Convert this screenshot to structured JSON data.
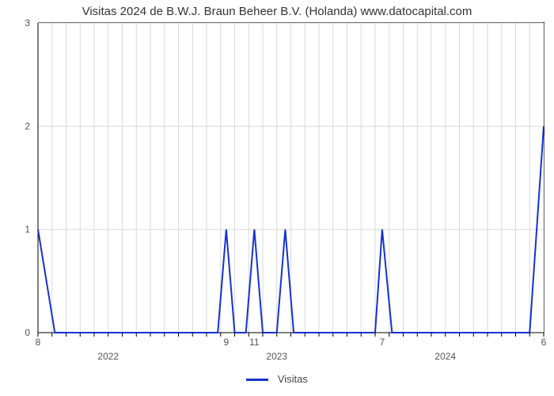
{
  "chart": {
    "type": "line",
    "title": "Visitas 2024 de B.W.J. Braun Beheer B.V. (Holanda) www.datocapital.com",
    "title_fontsize": 15,
    "background_color": "#ffffff",
    "grid_color": "#d9d9d9",
    "axis_color": "#000000",
    "label_color": "#555555",
    "y": {
      "min": 0,
      "max": 3,
      "ticks": [
        0,
        1,
        2,
        3
      ],
      "tick_labels": [
        "0",
        "1",
        "2",
        "3"
      ]
    },
    "x": {
      "min": 0,
      "max": 36,
      "year_ticks": [
        {
          "x": 5,
          "label": "2022"
        },
        {
          "x": 17,
          "label": "2023"
        },
        {
          "x": 29,
          "label": "2024"
        }
      ],
      "month_ticks": [
        0,
        1,
        2,
        3,
        4,
        5,
        6,
        7,
        8,
        9,
        10,
        11,
        12,
        13,
        14,
        15,
        16,
        17,
        18,
        19,
        20,
        21,
        22,
        23,
        24,
        25,
        26,
        27,
        28,
        29,
        30,
        31,
        32,
        33,
        34,
        35,
        36
      ],
      "value_labels": [
        {
          "x": 0,
          "label": "8"
        },
        {
          "x": 13.4,
          "label": "9"
        },
        {
          "x": 15.4,
          "label": "11"
        },
        {
          "x": 24.5,
          "label": "7"
        },
        {
          "x": 36,
          "label": "6"
        }
      ]
    },
    "series": {
      "name": "Visitas",
      "color": "#1531d1",
      "line_width": 2,
      "points": [
        [
          0,
          1
        ],
        [
          1.2,
          0
        ],
        [
          12.8,
          0
        ],
        [
          13.4,
          1
        ],
        [
          14.0,
          0
        ],
        [
          14.8,
          0
        ],
        [
          15.4,
          1
        ],
        [
          16.0,
          0
        ],
        [
          17.0,
          0
        ],
        [
          17.6,
          1
        ],
        [
          18.2,
          0
        ],
        [
          24.0,
          0
        ],
        [
          24.5,
          1
        ],
        [
          25.2,
          0
        ],
        [
          35.0,
          0
        ],
        [
          36.0,
          2
        ]
      ]
    },
    "legend": {
      "label": "Visitas",
      "swatch_color": "#1531d1"
    }
  }
}
